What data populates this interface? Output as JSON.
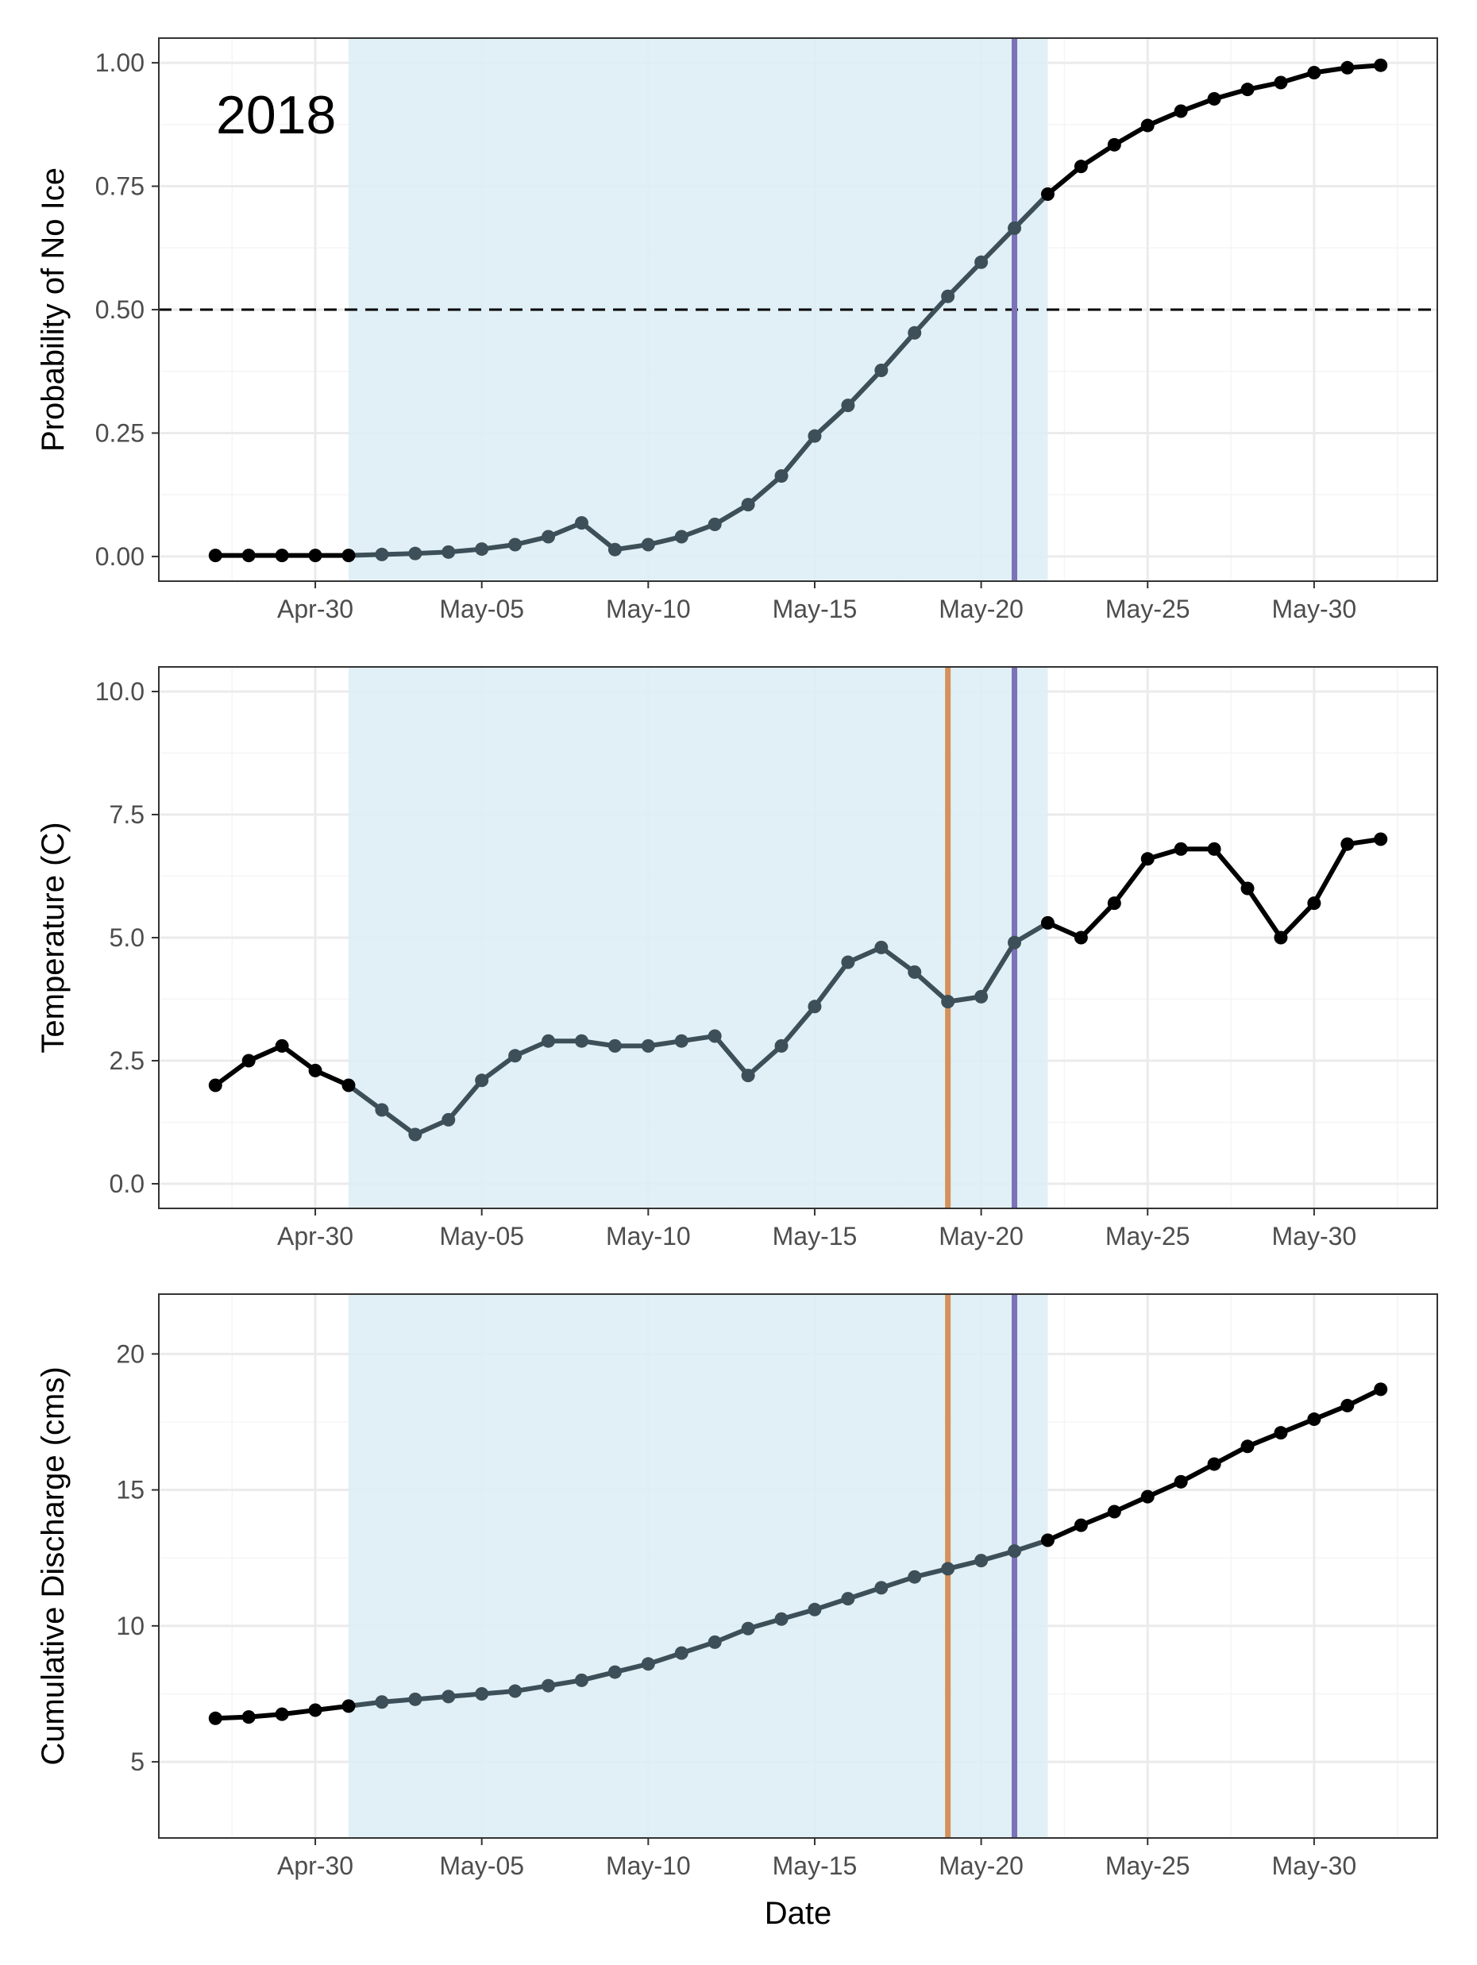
{
  "chart_data": [
    {
      "type": "line",
      "ylabel": "Probability of No Ice",
      "annotation": "2018",
      "ylim": [
        -0.05,
        1.05
      ],
      "yticks": [
        0,
        0.25,
        0.5,
        0.75,
        1
      ],
      "ytick_labels": [
        "0.00",
        "0.25",
        "0.50",
        "0.75",
        "1.00"
      ],
      "hline": 0.5,
      "shaded_range": [
        "May-01",
        "May-22"
      ],
      "vlines": [
        {
          "date": "May-21",
          "color": "#7b72b8"
        }
      ],
      "x": [
        "Apr-27",
        "Apr-28",
        "Apr-29",
        "Apr-30",
        "May-01",
        "May-02",
        "May-03",
        "May-04",
        "May-05",
        "May-06",
        "May-07",
        "May-08",
        "May-09",
        "May-10",
        "May-11",
        "May-12",
        "May-13",
        "May-14",
        "May-15",
        "May-16",
        "May-17",
        "May-18",
        "May-19",
        "May-20",
        "May-21",
        "May-22",
        "May-23",
        "May-24",
        "May-25",
        "May-26",
        "May-27",
        "May-28",
        "May-29",
        "May-30",
        "May-31",
        "Jun-01"
      ],
      "series": [
        {
          "values": [
            0.002,
            0.002,
            0.002,
            0.002,
            0.002,
            0.004,
            0.006,
            0.009,
            0.015,
            0.024,
            0.04,
            0.068,
            0.014,
            0.024,
            0.04,
            0.065,
            0.105,
            0.163,
            0.244,
            0.306,
            0.377,
            0.453,
            0.527,
            0.596,
            0.665,
            0.734,
            0.79,
            0.834,
            0.873,
            0.902,
            0.927,
            0.946,
            0.96,
            0.98,
            0.99,
            0.995
          ]
        }
      ]
    },
    {
      "type": "line",
      "ylabel": "Temperature (C)",
      "ylim": [
        -0.5,
        10.5
      ],
      "yticks": [
        0,
        2.5,
        5,
        7.5,
        10
      ],
      "ytick_labels": [
        "0.0",
        "2.5",
        "5.0",
        "7.5",
        "10.0"
      ],
      "shaded_range": [
        "May-01",
        "May-22"
      ],
      "vlines": [
        {
          "date": "May-19",
          "color": "#d4915a"
        },
        {
          "date": "May-21",
          "color": "#7b72b8"
        }
      ],
      "x": [
        "Apr-27",
        "Apr-28",
        "Apr-29",
        "Apr-30",
        "May-01",
        "May-02",
        "May-03",
        "May-04",
        "May-05",
        "May-06",
        "May-07",
        "May-08",
        "May-09",
        "May-10",
        "May-11",
        "May-12",
        "May-13",
        "May-14",
        "May-15",
        "May-16",
        "May-17",
        "May-18",
        "May-19",
        "May-20",
        "May-21",
        "May-22",
        "May-23",
        "May-24",
        "May-25",
        "May-26",
        "May-27",
        "May-28",
        "May-29",
        "May-30",
        "May-31",
        "Jun-01"
      ],
      "series": [
        {
          "values": [
            2.0,
            2.5,
            2.8,
            2.3,
            2.0,
            1.5,
            1.0,
            1.3,
            2.1,
            2.6,
            2.9,
            2.9,
            2.8,
            2.8,
            2.9,
            3.0,
            2.2,
            2.8,
            3.6,
            4.5,
            4.8,
            4.3,
            3.7,
            3.8,
            4.9,
            5.3,
            5.0,
            5.7,
            6.6,
            6.8,
            6.8,
            6.0,
            5.0,
            5.7,
            6.9,
            7.0
          ]
        }
      ]
    },
    {
      "type": "line",
      "ylabel": "Cumulative Discharge (cms)",
      "xlabel": "Date",
      "ylim": [
        2.2,
        22.2
      ],
      "yticks": [
        5,
        10,
        15,
        20
      ],
      "ytick_labels": [
        "5",
        "10",
        "15",
        "20"
      ],
      "shaded_range": [
        "May-01",
        "May-22"
      ],
      "vlines": [
        {
          "date": "May-19",
          "color": "#d4915a"
        },
        {
          "date": "May-21",
          "color": "#7b72b8"
        }
      ],
      "x": [
        "Apr-27",
        "Apr-28",
        "Apr-29",
        "Apr-30",
        "May-01",
        "May-02",
        "May-03",
        "May-04",
        "May-05",
        "May-06",
        "May-07",
        "May-08",
        "May-09",
        "May-10",
        "May-11",
        "May-12",
        "May-13",
        "May-14",
        "May-15",
        "May-16",
        "May-17",
        "May-18",
        "May-19",
        "May-20",
        "May-21",
        "May-22",
        "May-23",
        "May-24",
        "May-25",
        "May-26",
        "May-27",
        "May-28",
        "May-29",
        "May-30",
        "May-31",
        "Jun-01"
      ],
      "series": [
        {
          "values": [
            6.6,
            6.65,
            6.75,
            6.9,
            7.05,
            7.2,
            7.3,
            7.4,
            7.5,
            7.6,
            7.8,
            8.0,
            8.3,
            8.6,
            9.0,
            9.4,
            9.9,
            10.25,
            10.6,
            11.0,
            11.4,
            11.8,
            12.1,
            12.4,
            12.75,
            13.15,
            13.7,
            14.2,
            14.75,
            15.3,
            15.95,
            16.6,
            17.1,
            17.6,
            18.1,
            18.7
          ]
        }
      ]
    }
  ],
  "x_axis": {
    "tick_labels": [
      "Apr-30",
      "May-05",
      "May-10",
      "May-15",
      "May-20",
      "May-25",
      "May-30"
    ],
    "tick_dates": [
      "Apr-30",
      "May-05",
      "May-10",
      "May-15",
      "May-20",
      "May-25",
      "May-30"
    ]
  },
  "colors": {
    "shade": "#deeef5",
    "series_line": "#000000",
    "series_line_shaded": "#3d4f58",
    "hline": "#000000",
    "grid_major": "#ebebeb",
    "grid_minor": "#f5f5f5",
    "panel_border": "#333333"
  }
}
